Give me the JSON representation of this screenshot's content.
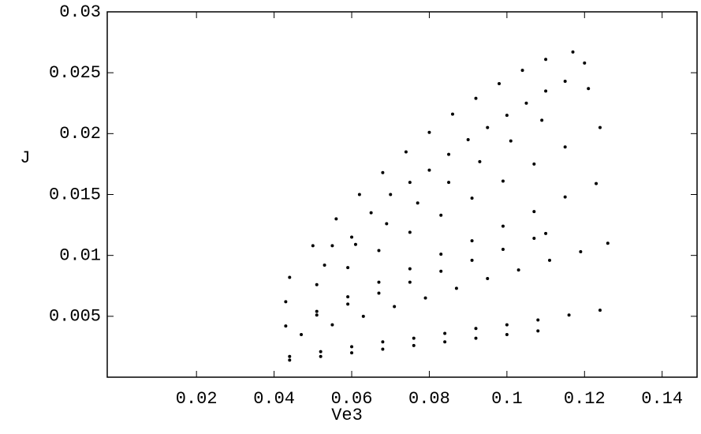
{
  "chart_data": {
    "type": "scatter",
    "x_label": "Ve3",
    "y_label": "J",
    "color": "#000000",
    "xlim": [
      -0.003,
      0.149
    ],
    "ylim": [
      0,
      0.03
    ],
    "xticks": [
      0.02,
      0.04,
      0.06,
      0.08,
      0.1,
      0.12,
      0.14
    ],
    "yticks": [
      0.005,
      0.01,
      0.015,
      0.02,
      0.025,
      0.03
    ],
    "x": [
      0.044,
      0.052,
      0.06,
      0.068,
      0.076,
      0.084,
      0.092,
      0.1,
      0.108,
      0.044,
      0.052,
      0.06,
      0.068,
      0.076,
      0.084,
      0.092,
      0.1,
      0.108,
      0.116,
      0.124,
      0.047,
      0.055,
      0.063,
      0.071,
      0.079,
      0.087,
      0.095,
      0.103,
      0.111,
      0.119,
      0.126,
      0.043,
      0.051,
      0.059,
      0.067,
      0.075,
      0.083,
      0.091,
      0.099,
      0.107,
      0.11,
      0.051,
      0.059,
      0.067,
      0.075,
      0.083,
      0.091,
      0.099,
      0.107,
      0.115,
      0.123,
      0.043,
      0.051,
      0.059,
      0.067,
      0.075,
      0.083,
      0.091,
      0.099,
      0.107,
      0.115,
      0.124,
      0.053,
      0.061,
      0.069,
      0.077,
      0.085,
      0.093,
      0.101,
      0.109,
      0.121,
      0.044,
      0.05,
      0.056,
      0.062,
      0.068,
      0.074,
      0.08,
      0.086,
      0.092,
      0.098,
      0.104,
      0.11,
      0.117,
      0.055,
      0.065,
      0.075,
      0.085,
      0.095,
      0.105,
      0.115,
      0.12,
      0.06,
      0.07,
      0.08,
      0.09,
      0.1,
      0.11
    ],
    "values": [
      0.0014,
      0.0017,
      0.002,
      0.0023,
      0.0026,
      0.0029,
      0.0032,
      0.0035,
      0.0038,
      0.0017,
      0.0021,
      0.0025,
      0.0029,
      0.0032,
      0.0036,
      0.004,
      0.0043,
      0.0047,
      0.0051,
      0.0055,
      0.0035,
      0.0043,
      0.005,
      0.0058,
      0.0065,
      0.0073,
      0.0081,
      0.0088,
      0.0096,
      0.0103,
      0.011,
      0.0042,
      0.0051,
      0.006,
      0.0069,
      0.0078,
      0.0087,
      0.0096,
      0.0105,
      0.0114,
      0.0118,
      0.0054,
      0.0066,
      0.0078,
      0.0089,
      0.0101,
      0.0112,
      0.0124,
      0.0136,
      0.0148,
      0.0159,
      0.0062,
      0.0076,
      0.009,
      0.0104,
      0.0119,
      0.0133,
      0.0147,
      0.0161,
      0.0175,
      0.0189,
      0.0205,
      0.0092,
      0.0109,
      0.0126,
      0.0143,
      0.016,
      0.0177,
      0.0194,
      0.0211,
      0.0237,
      0.0082,
      0.0108,
      0.013,
      0.015,
      0.0168,
      0.0185,
      0.0201,
      0.0216,
      0.0229,
      0.0241,
      0.0252,
      0.0261,
      0.0267,
      0.0108,
      0.0135,
      0.016,
      0.0183,
      0.0205,
      0.0225,
      0.0243,
      0.0258,
      0.0115,
      0.015,
      0.017,
      0.0195,
      0.0215,
      0.0235
    ]
  }
}
